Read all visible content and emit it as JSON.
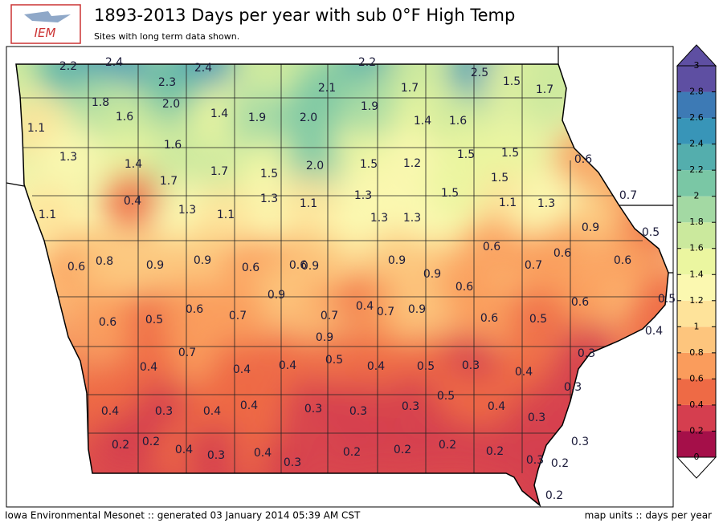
{
  "header": {
    "logo": "IEM",
    "title": "1893-2013 Days per year with sub 0°F High Temp",
    "subtitle": "Sites with long term data shown."
  },
  "colorbar": {
    "ticks": [
      0,
      0.2,
      0.4,
      0.6,
      0.8,
      1,
      1.2,
      1.4,
      1.6,
      1.8,
      2,
      2.2,
      2.4,
      2.6,
      2.8,
      3
    ],
    "colors": [
      "#a50f49",
      "#d53e4f",
      "#ee6a45",
      "#fa9c5c",
      "#fdc57d",
      "#fee39a",
      "#fbf8b0",
      "#ebf6a0",
      "#cbe99d",
      "#a3d9a3",
      "#7ac7a5",
      "#54aead",
      "#3895b8",
      "#3d7ab5",
      "#5e4fa2"
    ]
  },
  "stations": {
    "values": [
      2.2,
      2.4,
      2.4,
      2.2,
      2.3,
      2.1,
      2.5,
      1.5,
      1.7,
      1.7,
      1.8,
      2,
      1.6,
      1.4,
      1.9,
      2,
      1.9,
      1.4,
      1.6,
      1.1,
      1.3,
      1.6,
      1.4,
      1.7,
      1.7,
      1.5,
      2,
      1.5,
      1.2,
      1.5,
      1.5,
      1.5,
      0.6,
      1.5,
      1.3,
      1.3,
      1.1,
      1.1,
      1.3,
      0.7,
      1.1,
      0.4,
      1.3,
      1.1,
      1.3,
      1.3,
      0.9,
      0.5,
      0.6,
      0.6,
      0.8,
      0.9,
      0.9,
      0.6,
      0.6,
      0.9,
      0.9,
      0.9,
      0.6,
      0.7,
      0.6,
      0.6,
      0.9,
      0.6,
      0.5,
      0.6,
      0.5,
      0.6,
      0.7,
      0.7,
      0.4,
      0.7,
      0.9,
      0.6,
      0.5,
      0.4,
      0.9,
      0.7,
      0.3,
      0.4,
      0.4,
      0.4,
      0.5,
      0.4,
      0.5,
      0.3,
      0.4,
      0.3,
      0.5,
      0.4,
      0.3,
      0.4,
      0.4,
      0.3,
      0.3,
      0.3,
      0.4,
      0.3,
      0.2,
      0.2,
      0.4,
      0.3,
      0.4,
      0.3,
      0.2,
      0.2,
      0.2,
      0.2,
      0.3,
      0.2,
      0.3,
      0.2
    ],
    "value_labels": [
      "2.2",
      "2.4",
      "2.4",
      "2.2",
      "2.3",
      "2.1",
      "2.5",
      "1.5",
      "1.7",
      "1.7",
      "1.8",
      "2.0",
      "1.6",
      "1.4",
      "1.9",
      "2.0",
      "1.9",
      "1.4",
      "1.6",
      "1.1",
      "1.3",
      "1.6",
      "1.4",
      "1.7",
      "1.7",
      "1.5",
      "2.0",
      "1.5",
      "1.2",
      "1.5",
      "1.5",
      "1.5",
      "0.6",
      "1.5",
      "1.3",
      "1.3",
      "1.1",
      "1.1",
      "1.3",
      "0.7",
      "1.1",
      "0.4",
      "1.3",
      "1.1",
      "1.3",
      "1.3",
      "0.9",
      "0.5",
      "0.6",
      "0.6",
      "0.8",
      "0.9",
      "0.9",
      "0.6",
      "0.6",
      "0.9",
      "0.9",
      "0.9",
      "0.6",
      "0.7",
      "0.6",
      "0.6",
      "0.9",
      "0.6",
      "0.5",
      "0.6",
      "0.5",
      "0.6",
      "0.7",
      "0.7",
      "0.4",
      "0.7",
      "0.9",
      "0.6",
      "0.5",
      "0.4",
      "0.9",
      "0.7",
      "0.3",
      "0.4",
      "0.4",
      "0.4",
      "0.5",
      "0.4",
      "0.5",
      "0.3",
      "0.4",
      "0.3",
      "0.5",
      "0.4",
      "0.3",
      "0.4",
      "0.4",
      "0.3",
      "0.3",
      "0.3",
      "0.4",
      "0.3",
      "0.2",
      "0.2",
      "0.4",
      "0.3",
      "0.4",
      "0.3",
      "0.2",
      "0.2",
      "0.2",
      "0.2",
      "0.3",
      "0.2",
      "0.3",
      "0.2"
    ]
  },
  "footer": {
    "left": "Iowa Environmental Mesonet :: generated 03 January 2014 05:39 AM CST",
    "right": "map units :: days per year"
  }
}
